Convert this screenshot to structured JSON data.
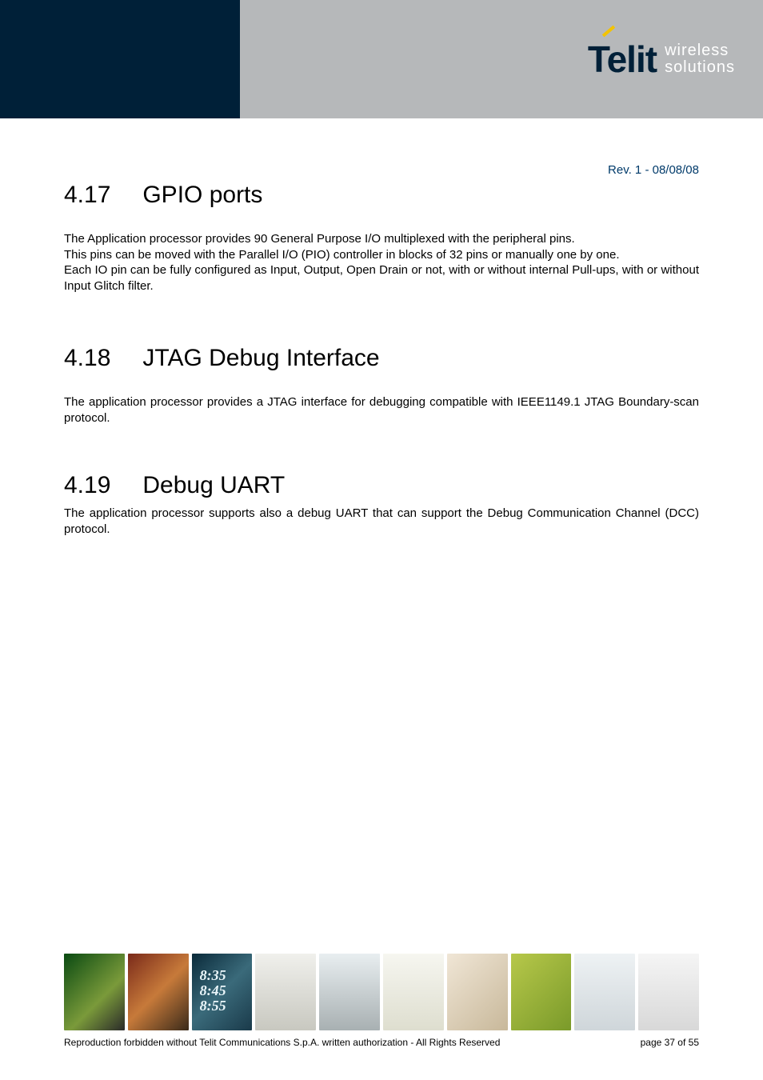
{
  "header": {
    "logo_main": "Telit",
    "logo_sub_line1": "wireless",
    "logo_sub_line2": "solutions",
    "colors": {
      "dark_block": "#002038",
      "gray_block": "#b6b8ba",
      "logo_text": "#002038",
      "logo_accent": "#f3c300",
      "logo_sub_text": "#ffffff"
    }
  },
  "rev": "Rev. 1 - 08/08/08",
  "sections": [
    {
      "num": "4.17",
      "title": "GPIO ports",
      "paragraphs": [
        "The Application processor provides 90 General Purpose I/O multiplexed with the peripheral pins.",
        "This pins can be moved with the Parallel I/O (PIO) controller in blocks of 32 pins or manually one by one.",
        "Each IO pin can be fully configured as Input, Output, Open Drain or not, with or without internal Pull-ups, with or without Input Glitch filter."
      ]
    },
    {
      "num": "4.18",
      "title": "JTAG Debug Interface",
      "paragraphs": [
        "The application processor provides a JTAG interface for debugging compatible with IEEE1149.1 JTAG Boundary-scan protocol."
      ]
    },
    {
      "num": "4.19",
      "title": "Debug UART",
      "paragraphs": [
        "The application processor supports also a debug UART that can support the Debug Communication Channel (DCC) protocol."
      ]
    }
  ],
  "footer": {
    "thumb_time_lines": [
      "8:35",
      "8:45",
      "8:55"
    ],
    "copyright": "Reproduction forbidden without Telit Communications S.p.A. written authorization - All Rights Reserved",
    "page": "page 37 of 55"
  },
  "typography": {
    "heading_fontsize": 30,
    "body_fontsize": 15,
    "rev_fontsize": 15,
    "footer_fontsize": 12,
    "rev_color": "#003a6a"
  }
}
